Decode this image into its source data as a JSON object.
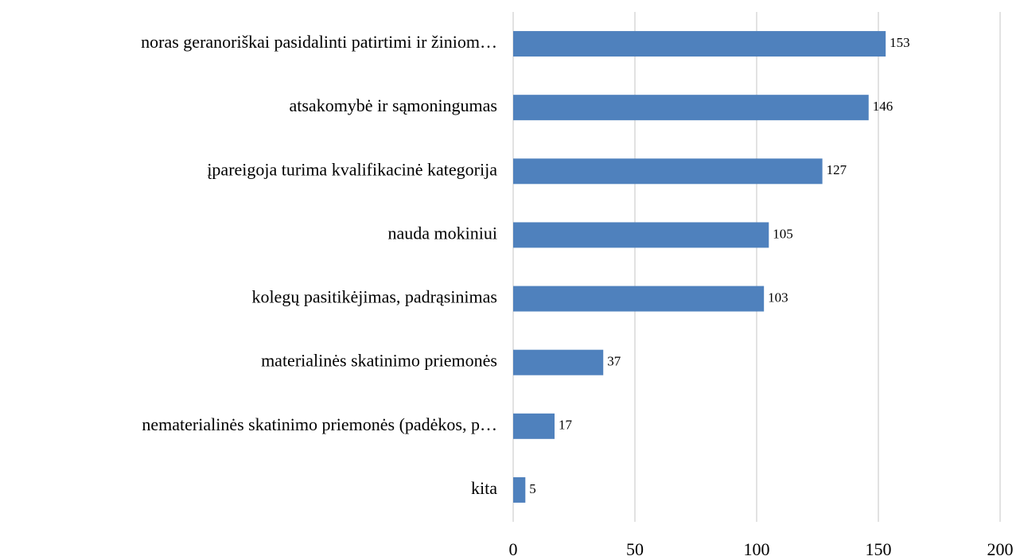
{
  "chart_data": {
    "type": "bar",
    "orientation": "horizontal",
    "categories": [
      "noras geranoriškai pasidalinti patirtimi ir žiniom…",
      "atsakomybė ir sąmoningumas",
      "įpareigoja turima kvalifikacinė kategorija",
      "nauda mokiniui",
      "kolegų pasitikėjimas, padrąsinimas",
      "materialinės skatinimo priemonės",
      "nematerialinės skatinimo priemonės (padėkos, p…",
      "kita"
    ],
    "values": [
      153,
      146,
      127,
      105,
      103,
      37,
      17,
      5
    ],
    "color": "#4f81bd",
    "xlim": [
      0,
      200
    ],
    "xticks": [
      0,
      50,
      100,
      150,
      200
    ],
    "grid": true
  }
}
